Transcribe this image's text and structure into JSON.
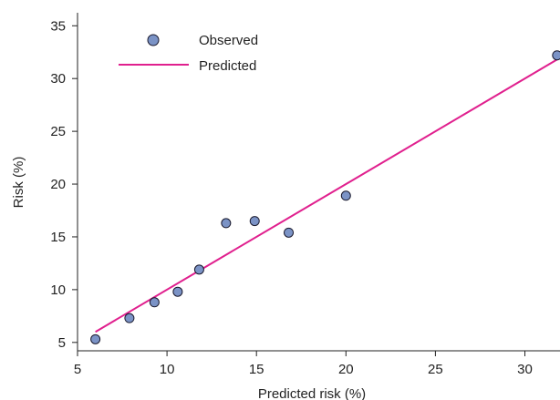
{
  "chart_data": {
    "type": "scatter",
    "xlabel": "Predicted risk (%)",
    "ylabel": "Risk (%)",
    "xlim": [
      5,
      32
    ],
    "ylim": [
      4.5,
      36
    ],
    "x_ticks": [
      5,
      10,
      15,
      20,
      25,
      30
    ],
    "y_ticks": [
      5,
      10,
      15,
      20,
      25,
      30,
      35
    ],
    "grid": false,
    "legend_position": "top-left",
    "series": [
      {
        "name": "Observed",
        "kind": "scatter",
        "color": "#7b93c6",
        "edge_color": "#1a1a2e",
        "points": [
          {
            "x": 6.0,
            "y": 5.3
          },
          {
            "x": 7.9,
            "y": 7.3
          },
          {
            "x": 9.3,
            "y": 8.8
          },
          {
            "x": 10.6,
            "y": 9.8
          },
          {
            "x": 11.8,
            "y": 11.9
          },
          {
            "x": 13.3,
            "y": 16.3
          },
          {
            "x": 14.9,
            "y": 16.5
          },
          {
            "x": 16.8,
            "y": 15.4
          },
          {
            "x": 20.0,
            "y": 18.9
          },
          {
            "x": 31.8,
            "y": 32.2
          }
        ]
      },
      {
        "name": "Predicted",
        "kind": "line",
        "color": "#e0208e",
        "points": [
          {
            "x": 6.0,
            "y": 6.0
          },
          {
            "x": 32.0,
            "y": 32.0
          }
        ]
      }
    ]
  }
}
